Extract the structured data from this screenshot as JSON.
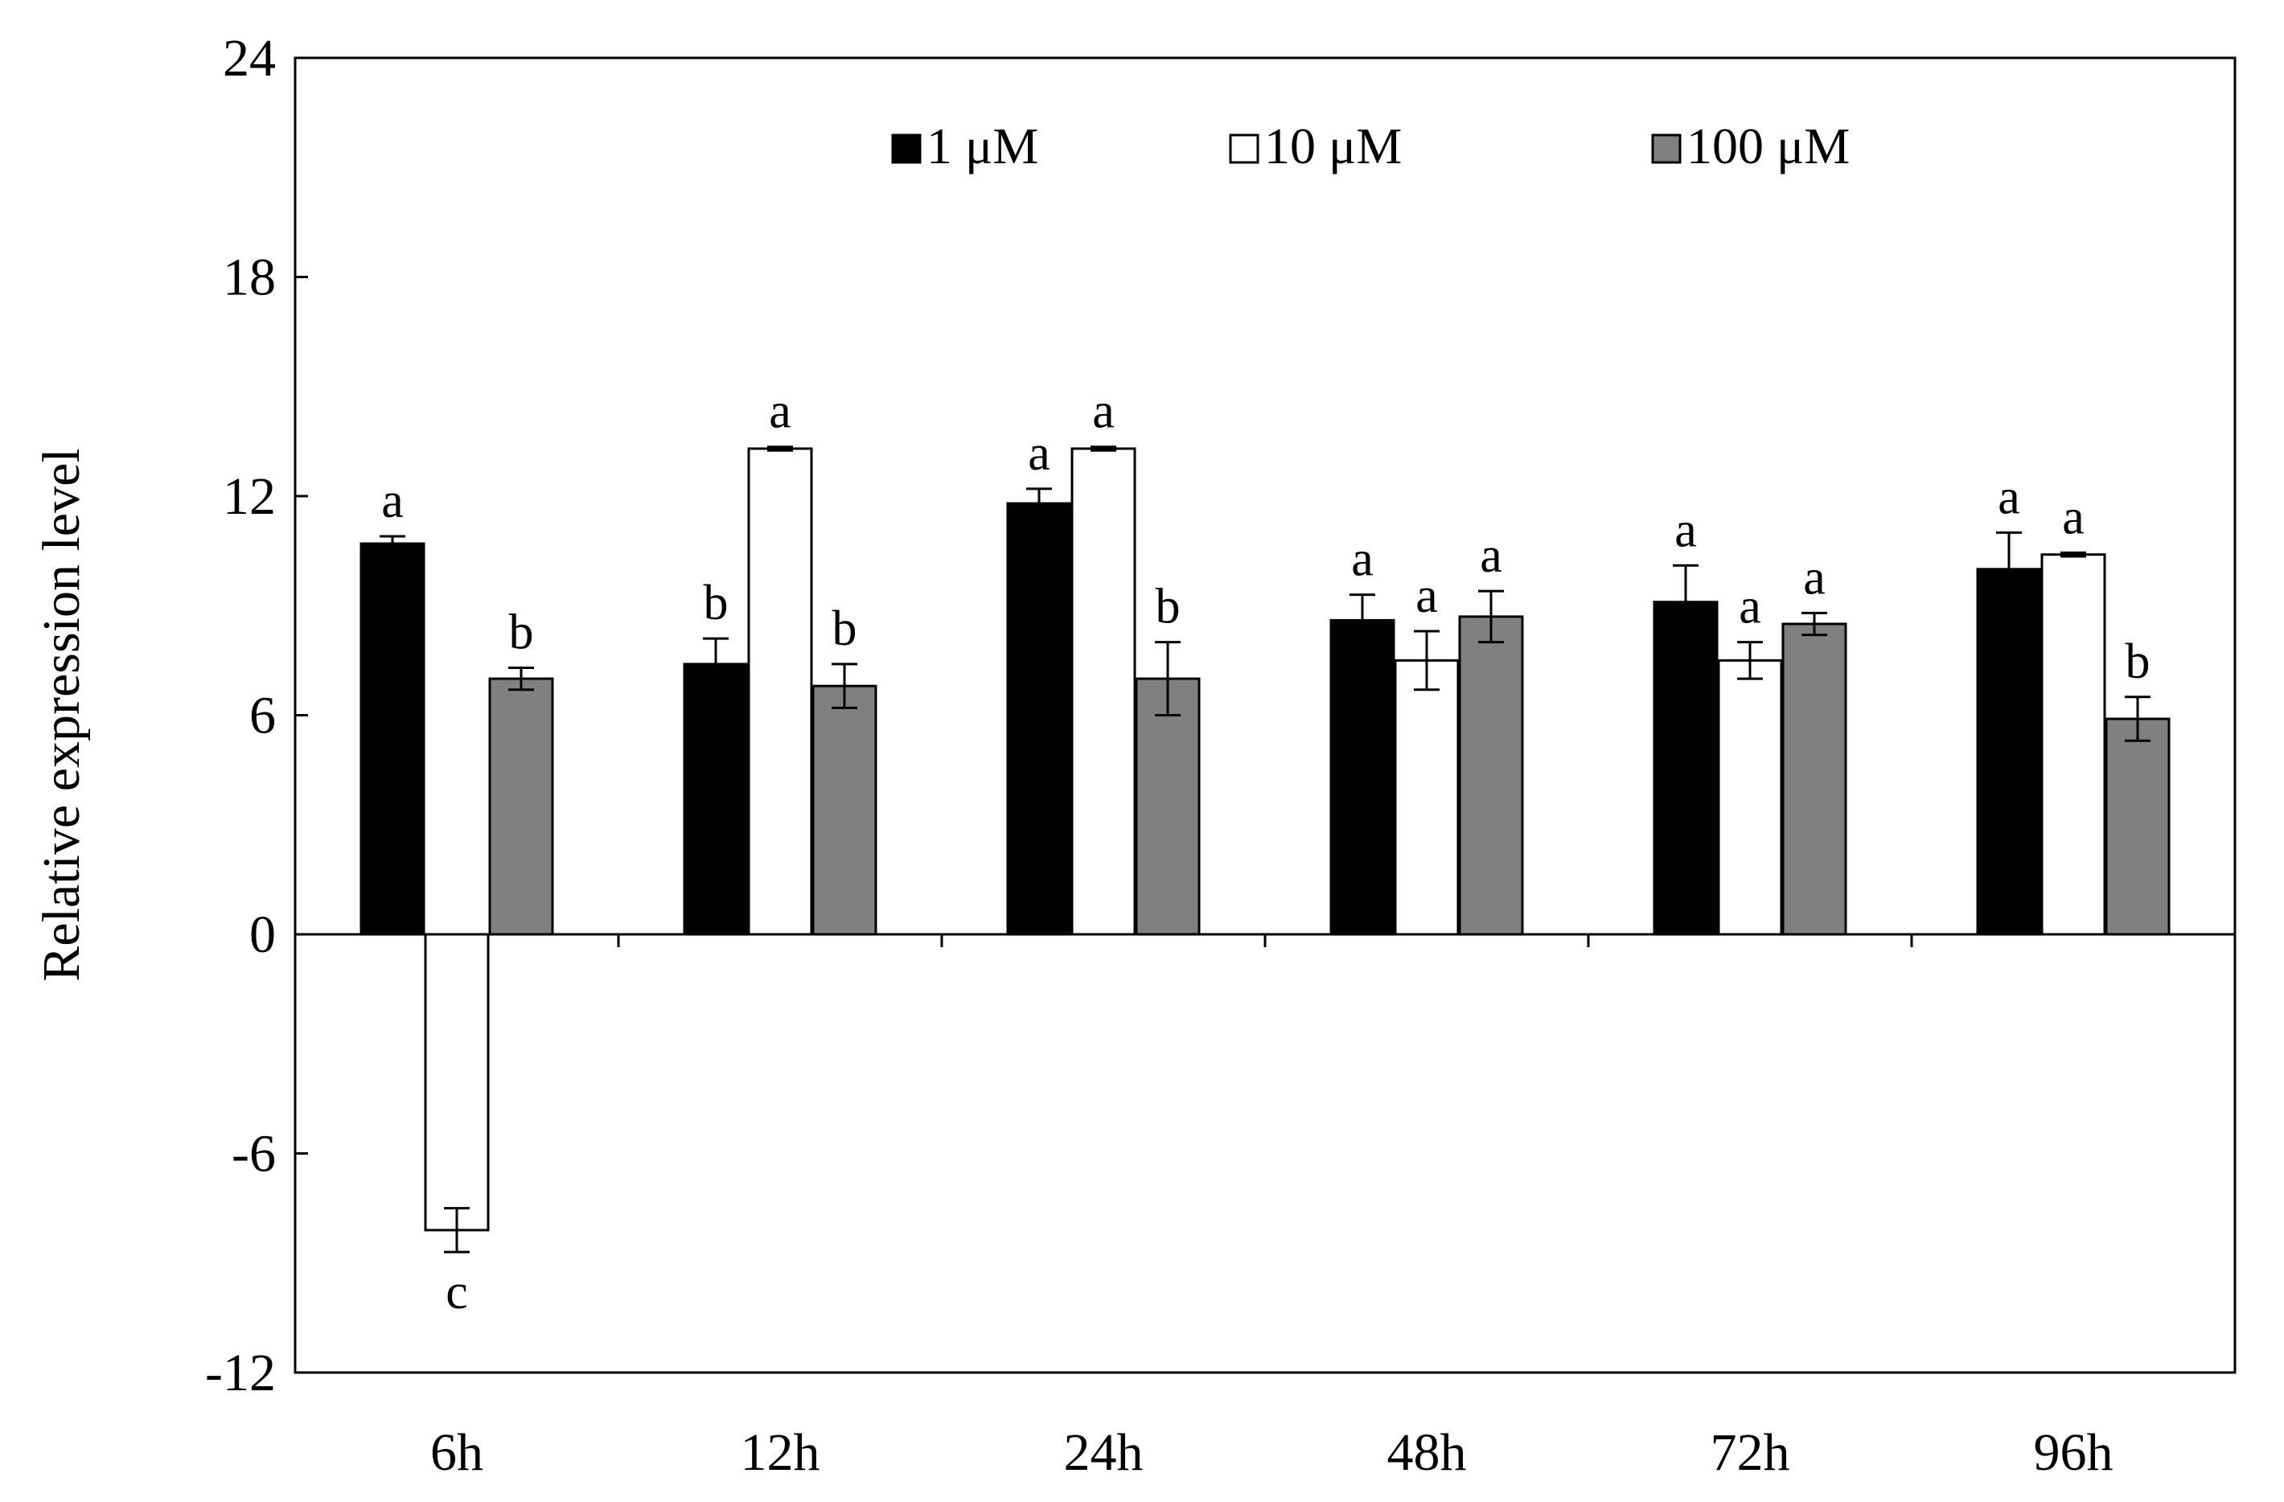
{
  "chart_data": {
    "type": "bar",
    "title": "",
    "xlabel": "",
    "ylabel": "Relative expression level",
    "ylim": [
      -12,
      24
    ],
    "yticks": [
      24,
      18,
      12,
      6,
      0,
      -6,
      -12
    ],
    "ytick_labels": [
      "24",
      "18",
      "12",
      "6",
      "0",
      "-6",
      "-12"
    ],
    "grid": false,
    "legend_position": "top-center",
    "categories": [
      "6h",
      "12h",
      "24h",
      "48h",
      "72h",
      "96h"
    ],
    "series": [
      {
        "name": "1 μM",
        "color": "#000000",
        "values": [
          10.7,
          7.4,
          11.8,
          8.6,
          9.1,
          10.0
        ],
        "errors": [
          0.2,
          0.7,
          0.4,
          0.7,
          1.0,
          1.0
        ],
        "labels": [
          "a",
          "b",
          "a",
          "a",
          "a",
          "a"
        ]
      },
      {
        "name": "10 μM",
        "color": "#ffffff",
        "values": [
          -8.1,
          13.3,
          13.3,
          7.5,
          7.5,
          10.4
        ],
        "errors": [
          0.6,
          0.05,
          0.05,
          0.8,
          0.5,
          0.05
        ],
        "labels": [
          "c",
          "a",
          "a",
          "a",
          "a",
          "a"
        ]
      },
      {
        "name": "100 μM",
        "color": "#808080",
        "values": [
          7.0,
          6.8,
          7.0,
          8.7,
          8.5,
          5.9
        ],
        "errors": [
          0.3,
          0.6,
          1.0,
          0.7,
          0.3,
          0.6
        ],
        "labels": [
          "b",
          "b",
          "b",
          "a",
          "a",
          "b"
        ]
      }
    ]
  }
}
